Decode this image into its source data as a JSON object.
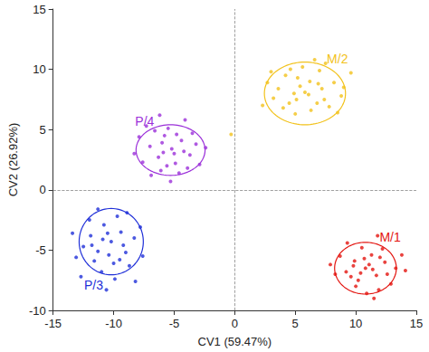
{
  "chart_data": {
    "type": "scatter",
    "xlabel": "CV1 (59.47%)",
    "ylabel": "CV2 (26.92%)",
    "xlim": [
      -15,
      15
    ],
    "xticks": [
      -15,
      -10,
      -5,
      0,
      5,
      10,
      15
    ],
    "ylim": [
      -10,
      15
    ],
    "yticks": [
      -10,
      -5,
      0,
      5,
      10,
      15
    ],
    "grid": false,
    "marker": "circle",
    "reference_lines": [
      {
        "axis": "x",
        "value": 0
      },
      {
        "axis": "y",
        "value": 0
      }
    ],
    "series": [
      {
        "name": "M/2",
        "color": "#f2c21b",
        "ellipse": {
          "center": [
            5.8,
            8.0
          ],
          "radii": [
            3.35,
            2.6
          ]
        },
        "values": [
          [
            5.8,
            8.1
          ],
          [
            4.5,
            7.2
          ],
          [
            6.9,
            8.8
          ],
          [
            5.2,
            9.3
          ],
          [
            7.4,
            7.5
          ],
          [
            3.6,
            8.4
          ],
          [
            6.3,
            6.6
          ],
          [
            8.2,
            8.9
          ],
          [
            4.9,
            8.0
          ],
          [
            5.6,
            10.2
          ],
          [
            7.0,
            9.9
          ],
          [
            3.2,
            7.6
          ],
          [
            6.1,
            7.9
          ],
          [
            8.8,
            7.8
          ],
          [
            4.2,
            9.5
          ],
          [
            5.0,
            6.3
          ],
          [
            7.8,
            6.9
          ],
          [
            2.7,
            8.9
          ],
          [
            6.6,
            10.8
          ],
          [
            9.6,
            9.7
          ],
          [
            5.4,
            8.6
          ],
          [
            6.8,
            7.2
          ],
          [
            4.0,
            6.8
          ],
          [
            7.5,
            10.5
          ],
          [
            3.0,
            9.8
          ],
          [
            6.2,
            9.0
          ],
          [
            8.5,
            6.4
          ],
          [
            5.1,
            7.5
          ],
          [
            7.2,
            8.4
          ],
          [
            4.6,
            10.0
          ],
          [
            2.3,
            7.0
          ],
          [
            9.0,
            8.5
          ],
          [
            -0.3,
            4.6
          ]
        ]
      },
      {
        "name": "P/4",
        "color": "#9b30d9",
        "ellipse": {
          "center": [
            -5.3,
            3.3
          ],
          "radii": [
            2.85,
            2.1
          ]
        },
        "values": [
          [
            -5.2,
            3.4
          ],
          [
            -6.3,
            2.7
          ],
          [
            -4.4,
            4.1
          ],
          [
            -5.8,
            4.5
          ],
          [
            -3.7,
            2.9
          ],
          [
            -7.0,
            3.6
          ],
          [
            -4.9,
            2.2
          ],
          [
            -6.1,
            1.6
          ],
          [
            -3.2,
            3.8
          ],
          [
            -5.5,
            5.1
          ],
          [
            -4.1,
            5.8
          ],
          [
            -7.6,
            2.3
          ],
          [
            -5.0,
            3.0
          ],
          [
            -6.6,
            4.9
          ],
          [
            -2.9,
            2.1
          ],
          [
            -4.6,
            1.4
          ],
          [
            -5.9,
            3.1
          ],
          [
            -7.9,
            4.4
          ],
          [
            -3.5,
            4.7
          ],
          [
            -6.9,
            1.2
          ],
          [
            -4.2,
            3.2
          ],
          [
            -5.6,
            2.0
          ],
          [
            -8.3,
            3.0
          ],
          [
            -2.4,
            3.5
          ],
          [
            -6.2,
            6.2
          ],
          [
            -4.8,
            4.6
          ],
          [
            -3.9,
            1.8
          ],
          [
            -5.3,
            0.7
          ],
          [
            -7.3,
            5.3
          ],
          [
            -6.0,
            3.9
          ]
        ]
      },
      {
        "name": "P/3",
        "color": "#1f2fd8",
        "ellipse": {
          "center": [
            -10.2,
            -4.3
          ],
          "radii": [
            2.65,
            2.75
          ]
        },
        "values": [
          [
            -10.2,
            -4.3
          ],
          [
            -11.3,
            -5.1
          ],
          [
            -9.4,
            -3.5
          ],
          [
            -10.8,
            -2.9
          ],
          [
            -9.0,
            -5.2
          ],
          [
            -11.9,
            -3.8
          ],
          [
            -10.0,
            -6.1
          ],
          [
            -8.3,
            -4.0
          ],
          [
            -12.5,
            -4.7
          ],
          [
            -9.7,
            -2.2
          ],
          [
            -11.0,
            -6.8
          ],
          [
            -8.7,
            -6.3
          ],
          [
            -10.5,
            -3.6
          ],
          [
            -12.0,
            -2.5
          ],
          [
            -9.2,
            -4.6
          ],
          [
            -11.6,
            -5.9
          ],
          [
            -7.8,
            -3.1
          ],
          [
            -10.4,
            -5.4
          ],
          [
            -13.1,
            -5.6
          ],
          [
            -8.9,
            -1.9
          ],
          [
            -9.9,
            -7.4
          ],
          [
            -11.3,
            -1.6
          ],
          [
            -12.7,
            -7.2
          ],
          [
            -7.6,
            -5.5
          ],
          [
            -10.9,
            -4.1
          ],
          [
            -9.5,
            -5.8
          ],
          [
            -11.8,
            -4.6
          ],
          [
            -8.2,
            -7.6
          ],
          [
            -10.6,
            -8.3
          ],
          [
            -13.4,
            -3.6
          ]
        ]
      },
      {
        "name": "M/1",
        "color": "#e3140f",
        "ellipse": {
          "center": [
            10.8,
            -6.5
          ],
          "radii": [
            2.55,
            2.15
          ]
        },
        "values": [
          [
            10.8,
            -6.5
          ],
          [
            11.7,
            -7.1
          ],
          [
            9.9,
            -5.9
          ],
          [
            12.4,
            -6.0
          ],
          [
            10.2,
            -7.5
          ],
          [
            11.3,
            -5.4
          ],
          [
            9.2,
            -6.8
          ],
          [
            12.9,
            -7.8
          ],
          [
            10.5,
            -4.8
          ],
          [
            11.9,
            -8.3
          ],
          [
            8.7,
            -5.5
          ],
          [
            13.3,
            -6.5
          ],
          [
            10.0,
            -8.0
          ],
          [
            11.1,
            -6.2
          ],
          [
            9.6,
            -7.2
          ],
          [
            12.2,
            -4.9
          ],
          [
            10.7,
            -5.7
          ],
          [
            8.3,
            -7.0
          ],
          [
            13.8,
            -5.4
          ],
          [
            11.5,
            -9.0
          ],
          [
            9.3,
            -4.4
          ],
          [
            12.6,
            -7.0
          ],
          [
            10.4,
            -6.9
          ],
          [
            11.8,
            -3.8
          ],
          [
            7.9,
            -6.2
          ],
          [
            12.0,
            -5.6
          ],
          [
            10.9,
            -8.6
          ],
          [
            9.8,
            -6.3
          ],
          [
            14.1,
            -6.7
          ],
          [
            11.4,
            -6.6
          ]
        ]
      }
    ]
  }
}
